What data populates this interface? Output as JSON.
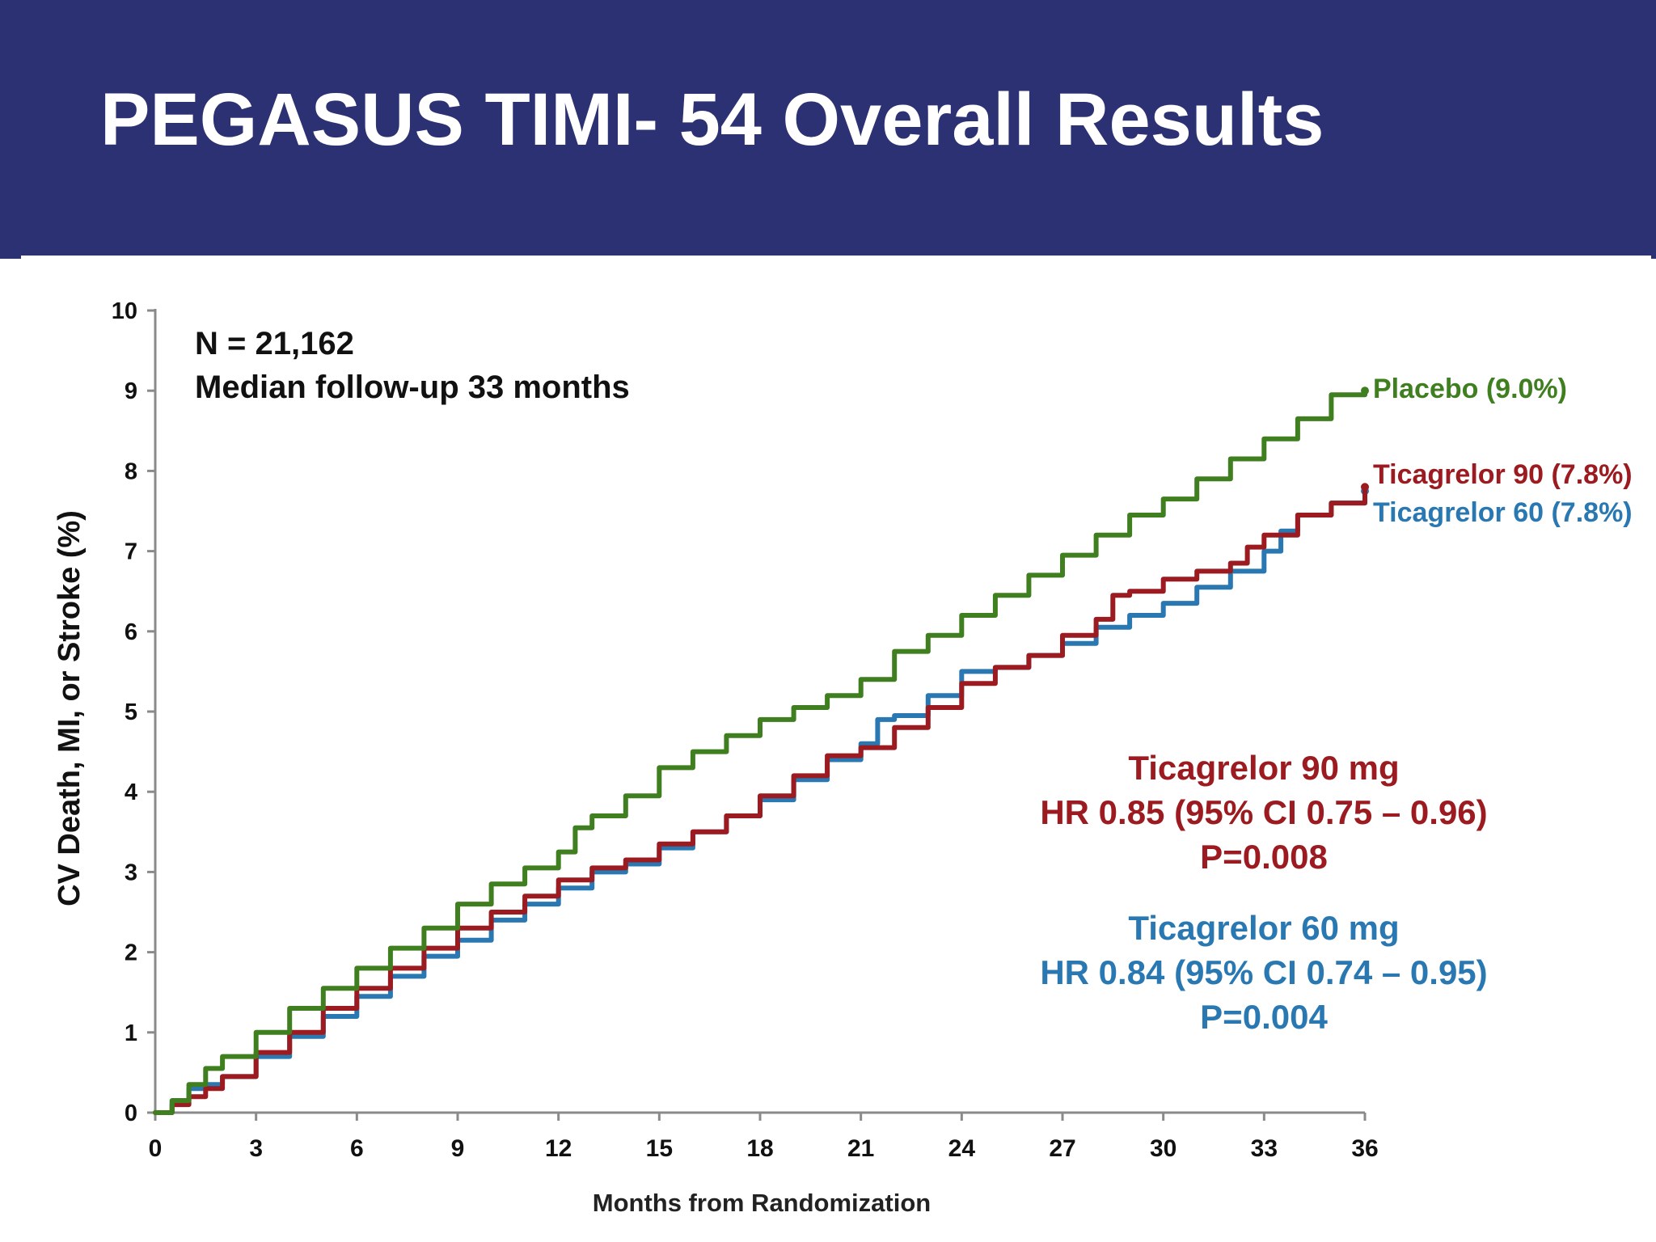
{
  "slide": {
    "title": "PEGASUS TIMI- 54 Overall Results"
  },
  "chart_data": {
    "type": "line",
    "title": "",
    "xlabel": "Months from Randomization",
    "ylabel": "CV Death, MI, or Stroke (%)",
    "xlim": [
      0,
      36
    ],
    "ylim": [
      0,
      10
    ],
    "x_ticks": [
      0,
      3,
      6,
      9,
      12,
      15,
      18,
      21,
      24,
      27,
      30,
      33,
      36
    ],
    "y_ticks": [
      0,
      1,
      2,
      3,
      4,
      5,
      6,
      7,
      8,
      9,
      10
    ],
    "grid": false,
    "annotations": {
      "n_label": "N = 21,162",
      "followup_label": "Median follow-up 33 months",
      "t90": {
        "title": "Ticagrelor 90 mg",
        "hr": "HR 0.85 (95% CI 0.75 – 0.96)",
        "p": "P=0.008",
        "color": "#9b1b20"
      },
      "t60": {
        "title": "Ticagrelor 60 mg",
        "hr": "HR 0.84 (95% CI 0.74 – 0.95)",
        "p": "P=0.004",
        "color": "#2a78b2"
      }
    },
    "series": [
      {
        "name": "Placebo (9.0%)",
        "color": "#3f7f1f",
        "x": [
          0,
          0.5,
          1,
          1.5,
          2,
          3,
          4,
          5,
          6,
          7,
          8,
          9,
          10,
          11,
          12,
          12.5,
          13,
          14,
          15,
          16,
          17,
          18,
          19,
          20,
          21,
          22,
          23,
          24,
          25,
          26,
          27,
          28,
          29,
          30,
          31,
          32,
          33,
          34,
          35,
          36
        ],
        "y": [
          0,
          0.15,
          0.35,
          0.55,
          0.7,
          1.0,
          1.3,
          1.55,
          1.8,
          2.05,
          2.3,
          2.6,
          2.85,
          3.05,
          3.25,
          3.55,
          3.7,
          3.95,
          4.3,
          4.5,
          4.7,
          4.9,
          5.05,
          5.2,
          5.4,
          5.75,
          5.95,
          6.2,
          6.45,
          6.7,
          6.95,
          7.2,
          7.45,
          7.65,
          7.9,
          8.15,
          8.4,
          8.65,
          8.95,
          9.0
        ]
      },
      {
        "name": "Ticagrelor 90 (7.8%)",
        "color": "#9b1b20",
        "x": [
          0,
          0.5,
          1,
          1.5,
          2,
          3,
          4,
          5,
          6,
          7,
          8,
          9,
          10,
          11,
          12,
          13,
          14,
          15,
          16,
          17,
          18,
          19,
          20,
          21,
          22,
          23,
          24,
          25,
          26,
          27,
          28,
          28.5,
          29,
          30,
          31,
          32,
          32.5,
          33,
          34,
          35,
          36
        ],
        "y": [
          0,
          0.1,
          0.2,
          0.3,
          0.45,
          0.75,
          1.0,
          1.3,
          1.55,
          1.8,
          2.05,
          2.3,
          2.5,
          2.7,
          2.9,
          3.05,
          3.15,
          3.35,
          3.5,
          3.7,
          3.95,
          4.2,
          4.45,
          4.55,
          4.8,
          5.05,
          5.35,
          5.55,
          5.7,
          5.95,
          6.15,
          6.45,
          6.5,
          6.65,
          6.75,
          6.85,
          7.05,
          7.2,
          7.45,
          7.6,
          7.8
        ]
      },
      {
        "name": "Ticagrelor 60 (7.8%)",
        "color": "#2a78b2",
        "x": [
          0,
          0.5,
          1,
          1.5,
          2,
          3,
          4,
          5,
          6,
          7,
          8,
          9,
          10,
          11,
          12,
          13,
          14,
          15,
          16,
          17,
          18,
          19,
          20,
          21,
          21.5,
          22,
          23,
          24,
          25,
          26,
          27,
          28,
          29,
          30,
          31,
          32,
          33,
          33.5,
          34,
          35,
          36
        ],
        "y": [
          0,
          0.15,
          0.3,
          0.35,
          0.45,
          0.7,
          0.95,
          1.2,
          1.45,
          1.7,
          1.95,
          2.15,
          2.4,
          2.6,
          2.8,
          3.0,
          3.1,
          3.3,
          3.5,
          3.7,
          3.9,
          4.15,
          4.4,
          4.6,
          4.9,
          4.95,
          5.2,
          5.5,
          5.55,
          5.7,
          5.85,
          6.05,
          6.2,
          6.35,
          6.55,
          6.75,
          7.0,
          7.25,
          7.45,
          7.6,
          7.75
        ]
      }
    ]
  }
}
